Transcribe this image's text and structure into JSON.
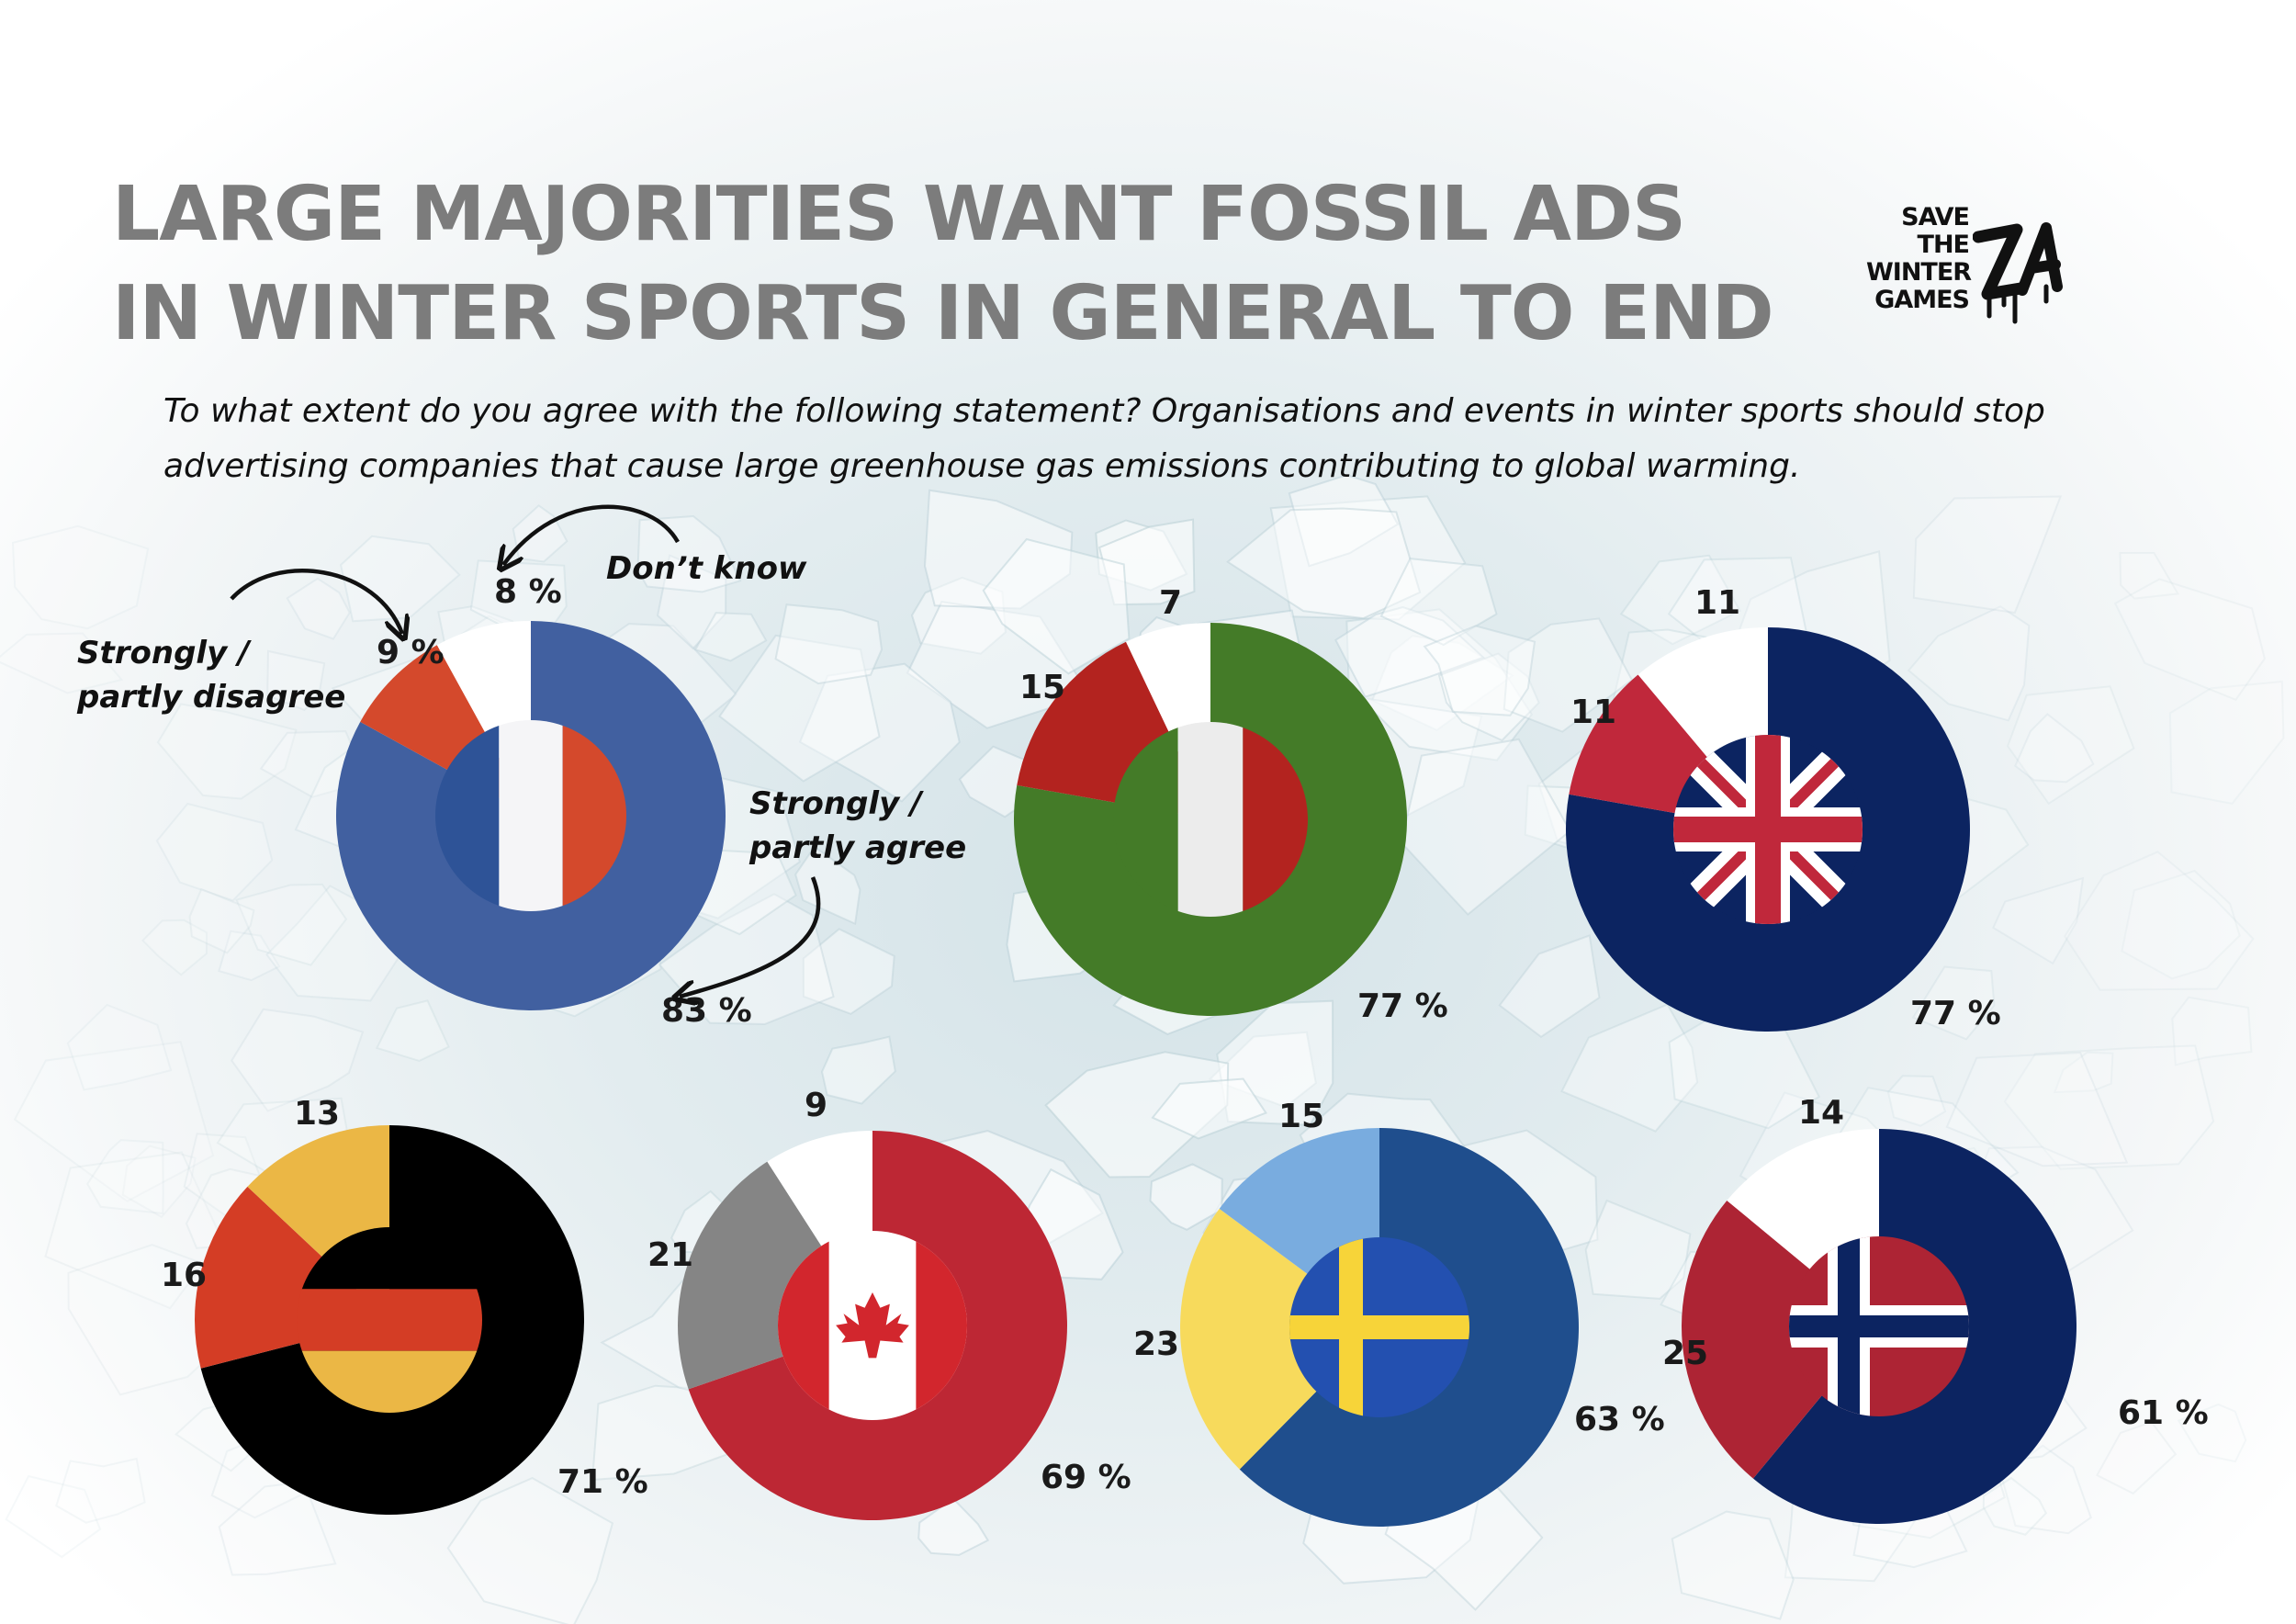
{
  "title": {
    "line1": "LARGE MAJORITIES WANT FOSSIL ADS",
    "line2": "IN WINTER SPORTS IN GENERAL TO END"
  },
  "question": {
    "line1": "To what extent do you agree with the following statement? Organisations and events in winter sports should stop",
    "line2": "advertising companies that cause large greenhouse gas emissions contributing to global warming."
  },
  "logo": {
    "lines": [
      "SAVE",
      "THE",
      "WINTER",
      "GAMES"
    ],
    "mark_text": "ZA"
  },
  "annotations": {
    "dont_know": "Don’t know",
    "disagree_line1": "Strongly  /",
    "disagree_line2": "partly disagree",
    "agree_line1": "Strongly /",
    "agree_line2": "partly agree"
  },
  "chart_data": [
    {
      "type": "pie",
      "country_flag": "france",
      "categories": [
        "Strongly / partly agree",
        "Strongly / partly disagree",
        "Don’t know"
      ],
      "values": [
        83,
        9,
        8
      ],
      "value_labels": [
        "83 %",
        "9 %",
        "8 %"
      ],
      "colors": [
        "#4160a0",
        "#d4492c",
        "#ffffff"
      ]
    },
    {
      "type": "pie",
      "country_flag": "italy",
      "categories": [
        "Strongly / partly agree",
        "Strongly / partly disagree",
        "Don’t know"
      ],
      "values": [
        77,
        15,
        7
      ],
      "value_labels": [
        "77 %",
        "15",
        "7"
      ],
      "colors": [
        "#447b28",
        "#b3231f",
        "#ffffff"
      ]
    },
    {
      "type": "pie",
      "country_flag": "united-kingdom",
      "categories": [
        "Strongly / partly agree",
        "Strongly / partly disagree",
        "Don’t know"
      ],
      "values": [
        77,
        11,
        11
      ],
      "value_labels": [
        "77 %",
        "11",
        "11"
      ],
      "colors": [
        "#0c2461",
        "#c0283b",
        "#ffffff"
      ]
    },
    {
      "type": "pie",
      "country_flag": "germany",
      "categories": [
        "Strongly / partly agree",
        "Strongly / partly disagree",
        "Don’t know"
      ],
      "values": [
        71,
        16,
        13
      ],
      "value_labels": [
        "71 %",
        "16",
        "13"
      ],
      "colors": [
        "#000000",
        "#d43d25",
        "#ebb745"
      ]
    },
    {
      "type": "pie",
      "country_flag": "canada",
      "categories": [
        "Strongly / partly agree",
        "Strongly / partly disagree",
        "Don’t know"
      ],
      "values": [
        69,
        21,
        9
      ],
      "value_labels": [
        "69 %",
        "21",
        "9"
      ],
      "colors": [
        "#bd2734",
        "#858585",
        "#ffffff"
      ]
    },
    {
      "type": "pie",
      "country_flag": "sweden",
      "categories": [
        "Strongly / partly agree",
        "Strongly / partly disagree",
        "Don’t know"
      ],
      "values": [
        63,
        23,
        15
      ],
      "value_labels": [
        "63 %",
        "23",
        "15"
      ],
      "colors": [
        "#1f4e8d",
        "#f7da5c",
        "#79acdf"
      ]
    },
    {
      "type": "pie",
      "country_flag": "norway",
      "categories": [
        "Strongly / partly agree",
        "Strongly / partly disagree",
        "Don’t know"
      ],
      "values": [
        61,
        25,
        14
      ],
      "value_labels": [
        "61 %",
        "25",
        "14"
      ],
      "colors": [
        "#0c2461",
        "#ad2434",
        "#ffffff"
      ]
    }
  ]
}
